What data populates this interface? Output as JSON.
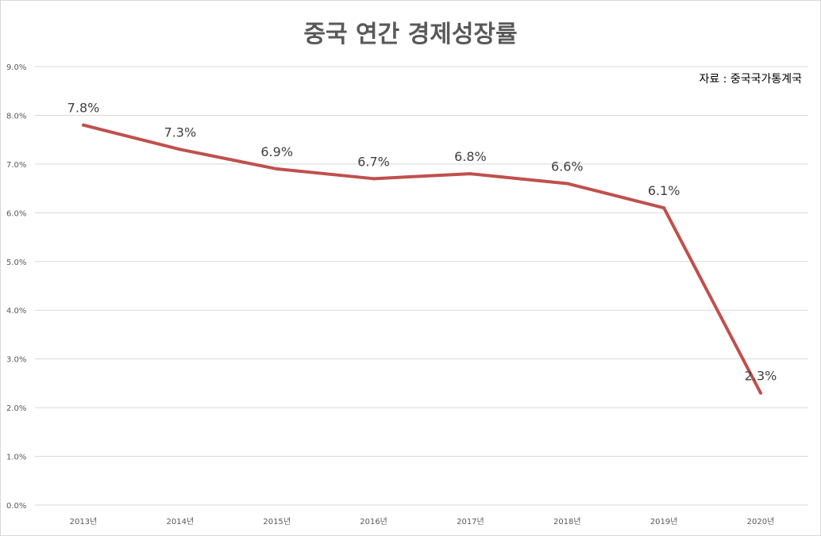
{
  "chart_data": {
    "type": "line",
    "title": "중국 연간 경제성장률",
    "annotation": "자료 : 중국국가통계국",
    "categories": [
      "2013년",
      "2014년",
      "2015년",
      "2016년",
      "2017년",
      "2018년",
      "2019년",
      "2020년"
    ],
    "series": [
      {
        "values": [
          7.8,
          7.3,
          6.9,
          6.7,
          6.8,
          6.6,
          6.1,
          2.3
        ],
        "data_labels": [
          "7.8%",
          "7.3%",
          "6.9%",
          "6.7%",
          "6.8%",
          "6.6%",
          "6.1%",
          "2.3%"
        ],
        "color": "#c0504d"
      }
    ],
    "yticks": [
      "0.0%",
      "1.0%",
      "2.0%",
      "3.0%",
      "4.0%",
      "5.0%",
      "6.0%",
      "7.0%",
      "8.0%",
      "9.0%"
    ],
    "ylim": [
      0,
      9
    ],
    "grid": true,
    "gridColor": "#d9d9d9"
  }
}
